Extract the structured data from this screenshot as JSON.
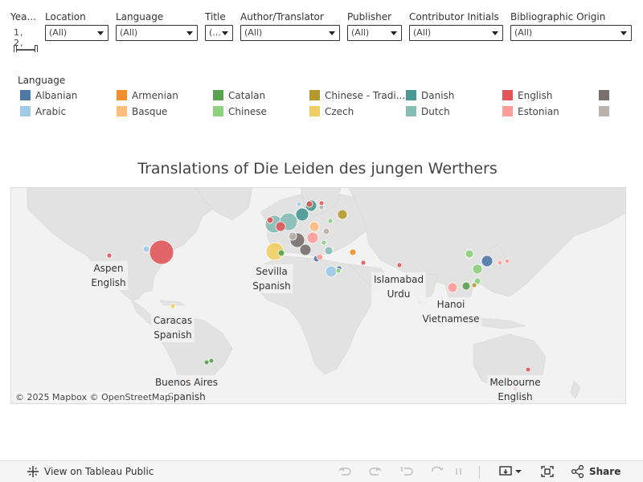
{
  "filters": {
    "year": {
      "label": "Yea...",
      "values": "1,  2,"
    },
    "location": {
      "label": "Location",
      "value": "(All)"
    },
    "language": {
      "label": "Language",
      "value": "(All)"
    },
    "title": {
      "label": "Title",
      "value": "(..."
    },
    "author": {
      "label": "Author/Translator",
      "value": "(All)"
    },
    "publisher": {
      "label": "Publisher",
      "value": "(All)"
    },
    "contributor": {
      "label": "Contributor Initials",
      "value": "(All)"
    },
    "origin": {
      "label": "Bibliographic Origin",
      "value": "(All)"
    }
  },
  "legend": {
    "title": "Language",
    "items": [
      {
        "label": "Albanian",
        "color": "#4e79a7"
      },
      {
        "label": "Arabic",
        "color": "#a0cbe8"
      },
      {
        "label": "Armenian",
        "color": "#f28e2b"
      },
      {
        "label": "Basque",
        "color": "#ffbe7d"
      },
      {
        "label": "Catalan",
        "color": "#59a14f"
      },
      {
        "label": "Chinese",
        "color": "#8cd17d"
      },
      {
        "label": "Chinese - Tradi...",
        "color": "#b6992d"
      },
      {
        "label": "Czech",
        "color": "#f1ce63"
      },
      {
        "label": "Danish",
        "color": "#499894"
      },
      {
        "label": "Dutch",
        "color": "#86bcb6"
      },
      {
        "label": "English",
        "color": "#e15759"
      },
      {
        "label": "Estonian",
        "color": "#ff9d9a"
      },
      {
        "label": "",
        "color": "#79706e"
      },
      {
        "label": "",
        "color": "#bab0ac"
      }
    ]
  },
  "title": "Translations of Die Leiden des jungen Werthers",
  "map": {
    "attribution": "© 2025 Mapbox  © OpenStreetMap",
    "labels": [
      {
        "place": "Aspen",
        "language": "English"
      },
      {
        "place": "Sevilla",
        "language": "Spanish"
      },
      {
        "place": "Islamabad",
        "language": "Urdu"
      },
      {
        "place": "Hanoi",
        "language": "Vietnamese"
      },
      {
        "place": "Caracas",
        "language": "Spanish"
      },
      {
        "place": "Buenos Aires",
        "language": "Spanish"
      },
      {
        "place": "Melbourne",
        "language": "English"
      }
    ]
  },
  "toolbar": {
    "view_label": "View on Tableau Public",
    "share_label": "Share"
  }
}
